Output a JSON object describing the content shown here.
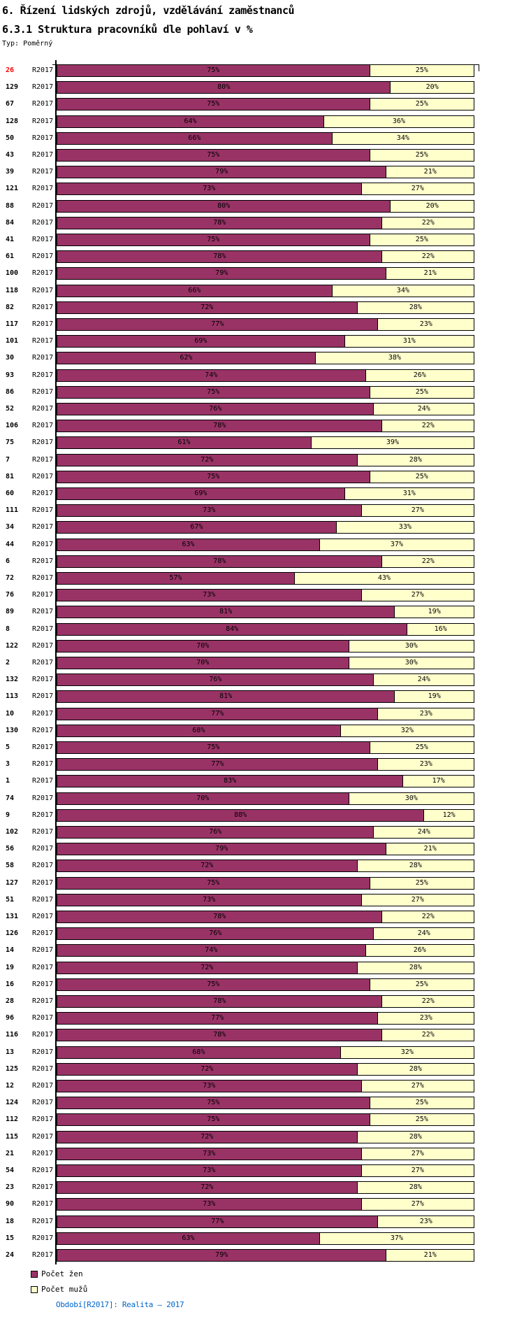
{
  "header": {
    "title_line1": "6. Řízení lidských zdrojů, vzdělávání zaměstnanců",
    "title_line2": "6.3.1 Struktura pracovníků dle pohlaví v %",
    "type_label": "Typ: Poměrný"
  },
  "chart_data": {
    "type": "bar",
    "orientation": "horizontal",
    "stacked": true,
    "unit": "%",
    "xlim": [
      0,
      100
    ],
    "period_label": "R2017",
    "legend_position": "bottom-left",
    "series": [
      {
        "name": "Počet žen",
        "color": "#993366"
      },
      {
        "name": "Počet mužů",
        "color": "#FFFFCC"
      }
    ],
    "rows": [
      {
        "id": "26",
        "women": 75,
        "men": 25,
        "highlight": true
      },
      {
        "id": "129",
        "women": 80,
        "men": 20
      },
      {
        "id": "67",
        "women": 75,
        "men": 25
      },
      {
        "id": "128",
        "women": 64,
        "men": 36
      },
      {
        "id": "50",
        "women": 66,
        "men": 34
      },
      {
        "id": "43",
        "women": 75,
        "men": 25
      },
      {
        "id": "39",
        "women": 79,
        "men": 21
      },
      {
        "id": "121",
        "women": 73,
        "men": 27
      },
      {
        "id": "88",
        "women": 80,
        "men": 20
      },
      {
        "id": "84",
        "women": 78,
        "men": 22
      },
      {
        "id": "41",
        "women": 75,
        "men": 25
      },
      {
        "id": "61",
        "women": 78,
        "men": 22
      },
      {
        "id": "100",
        "women": 79,
        "men": 21
      },
      {
        "id": "118",
        "women": 66,
        "men": 34
      },
      {
        "id": "82",
        "women": 72,
        "men": 28
      },
      {
        "id": "117",
        "women": 77,
        "men": 23
      },
      {
        "id": "101",
        "women": 69,
        "men": 31
      },
      {
        "id": "30",
        "women": 62,
        "men": 38
      },
      {
        "id": "93",
        "women": 74,
        "men": 26
      },
      {
        "id": "86",
        "women": 75,
        "men": 25
      },
      {
        "id": "52",
        "women": 76,
        "men": 24
      },
      {
        "id": "106",
        "women": 78,
        "men": 22
      },
      {
        "id": "75",
        "women": 61,
        "men": 39
      },
      {
        "id": "7",
        "women": 72,
        "men": 28
      },
      {
        "id": "81",
        "women": 75,
        "men": 25
      },
      {
        "id": "60",
        "women": 69,
        "men": 31
      },
      {
        "id": "111",
        "women": 73,
        "men": 27
      },
      {
        "id": "34",
        "women": 67,
        "men": 33
      },
      {
        "id": "44",
        "women": 63,
        "men": 37
      },
      {
        "id": "6",
        "women": 78,
        "men": 22
      },
      {
        "id": "72",
        "women": 57,
        "men": 43
      },
      {
        "id": "76",
        "women": 73,
        "men": 27
      },
      {
        "id": "89",
        "women": 81,
        "men": 19
      },
      {
        "id": "8",
        "women": 84,
        "men": 16
      },
      {
        "id": "122",
        "women": 70,
        "men": 30
      },
      {
        "id": "2",
        "women": 70,
        "men": 30
      },
      {
        "id": "132",
        "women": 76,
        "men": 24
      },
      {
        "id": "113",
        "women": 81,
        "men": 19
      },
      {
        "id": "10",
        "women": 77,
        "men": 23
      },
      {
        "id": "130",
        "women": 68,
        "men": 32
      },
      {
        "id": "5",
        "women": 75,
        "men": 25
      },
      {
        "id": "3",
        "women": 77,
        "men": 23
      },
      {
        "id": "1",
        "women": 83,
        "men": 17
      },
      {
        "id": "74",
        "women": 70,
        "men": 30
      },
      {
        "id": "9",
        "women": 88,
        "men": 12
      },
      {
        "id": "102",
        "women": 76,
        "men": 24
      },
      {
        "id": "56",
        "women": 79,
        "men": 21
      },
      {
        "id": "58",
        "women": 72,
        "men": 28
      },
      {
        "id": "127",
        "women": 75,
        "men": 25
      },
      {
        "id": "51",
        "women": 73,
        "men": 27
      },
      {
        "id": "131",
        "women": 78,
        "men": 22
      },
      {
        "id": "126",
        "women": 76,
        "men": 24
      },
      {
        "id": "14",
        "women": 74,
        "men": 26
      },
      {
        "id": "19",
        "women": 72,
        "men": 28
      },
      {
        "id": "16",
        "women": 75,
        "men": 25
      },
      {
        "id": "28",
        "women": 78,
        "men": 22
      },
      {
        "id": "96",
        "women": 77,
        "men": 23
      },
      {
        "id": "116",
        "women": 78,
        "men": 22
      },
      {
        "id": "13",
        "women": 68,
        "men": 32
      },
      {
        "id": "125",
        "women": 72,
        "men": 28
      },
      {
        "id": "12",
        "women": 73,
        "men": 27
      },
      {
        "id": "124",
        "women": 75,
        "men": 25
      },
      {
        "id": "112",
        "women": 75,
        "men": 25
      },
      {
        "id": "115",
        "women": 72,
        "men": 28
      },
      {
        "id": "21",
        "women": 73,
        "men": 27
      },
      {
        "id": "54",
        "women": 73,
        "men": 27
      },
      {
        "id": "23",
        "women": 72,
        "men": 28
      },
      {
        "id": "90",
        "women": 73,
        "men": 27
      },
      {
        "id": "18",
        "women": 77,
        "men": 23
      },
      {
        "id": "15",
        "women": 63,
        "men": 37
      },
      {
        "id": "24",
        "women": 79,
        "men": 21
      }
    ],
    "highlight_color": "#FF0000"
  },
  "legend": {
    "items": [
      {
        "label": "Počet žen",
        "color": "#993366"
      },
      {
        "label": "Počet mužů",
        "color": "#FFFFCC"
      }
    ]
  },
  "footer": {
    "text": "Období[R2017]: Realita – 2017",
    "color": "#0066CC"
  }
}
